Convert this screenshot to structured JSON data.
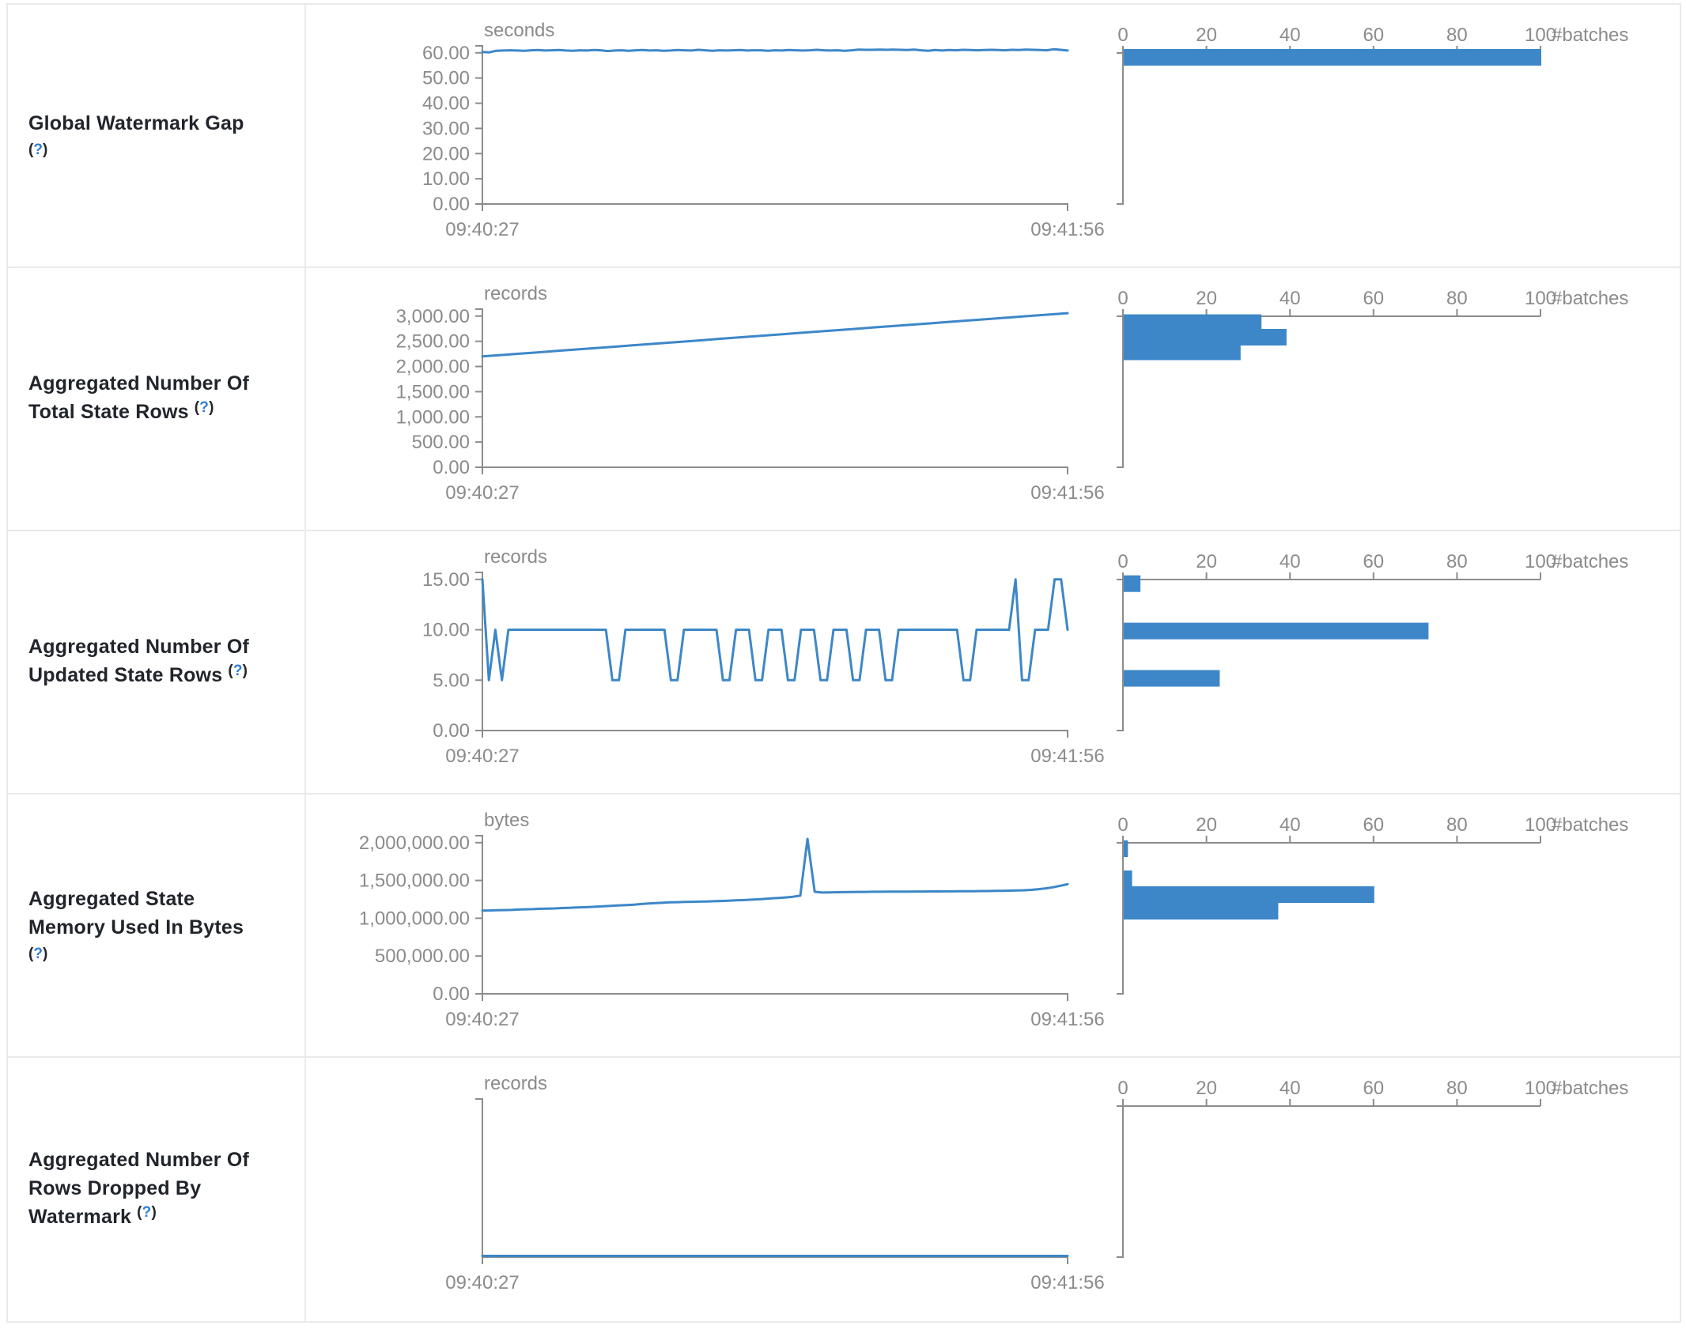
{
  "colors": {
    "blue": "#3d87c8",
    "axis": "#8c8c8c",
    "chart_text": "#8b8b8b",
    "title_text": "#21252b",
    "help_blue": "#2f7ed8",
    "border": "#e7eaec"
  },
  "axis": {
    "x_start": "09:40:27",
    "x_end": "09:41:56",
    "batch_ticks": [
      {
        "v": 0,
        "label": "0"
      },
      {
        "v": 20,
        "label": "20"
      },
      {
        "v": 40,
        "label": "40"
      },
      {
        "v": 60,
        "label": "60"
      },
      {
        "v": 80,
        "label": "80"
      },
      {
        "v": 100,
        "label": "100"
      }
    ],
    "batch_label": "#batches"
  },
  "chart_data": [
    {
      "id": "global-watermark-gap",
      "title_lines": [
        "Global Watermark Gap"
      ],
      "help": "(?)",
      "help_own_line": true,
      "unit": "seconds",
      "type": "line+histogram",
      "y_ticks": [
        {
          "v": 0,
          "label": "0.00"
        },
        {
          "v": 10,
          "label": "10.00"
        },
        {
          "v": 20,
          "label": "20.00"
        },
        {
          "v": 30,
          "label": "30.00"
        },
        {
          "v": 40,
          "label": "40.00"
        },
        {
          "v": 50,
          "label": "50.00"
        },
        {
          "v": 60,
          "label": "60.00"
        }
      ],
      "tick_max": 60,
      "timeline": [
        60.3,
        60.2,
        60.8,
        60.9,
        61.0,
        60.9,
        60.8,
        61.0,
        61.1,
        60.9,
        61.0,
        61.1,
        60.9,
        60.8,
        61.0,
        60.9,
        61.1,
        61.0,
        60.7,
        60.9,
        61.0,
        60.8,
        61.0,
        61.1,
        60.9,
        61.0,
        60.8,
        60.9,
        61.1,
        61.0,
        60.9,
        61.2,
        61.0,
        60.8,
        61.0,
        60.9,
        61.0,
        61.1,
        60.9,
        61.0,
        61.0,
        60.8,
        61.0,
        60.9,
        61.1,
        61.0,
        60.9,
        61.0,
        61.2,
        61.0,
        60.9,
        61.0,
        60.8,
        61.0,
        61.3,
        61.2,
        61.2,
        61.3,
        61.2,
        61.3,
        61.2,
        61.1,
        61.3,
        61.0,
        60.8,
        61.1,
        60.9,
        61.1,
        61.0,
        61.2,
        61.1,
        61.0,
        61.1,
        61.2,
        61.1,
        61.0,
        61.2,
        61.1,
        61.3,
        61.2,
        61.1,
        61.0,
        61.4,
        61.2,
        60.9
      ],
      "histogram": [
        {
          "range": [
            60.3,
            61.5
          ],
          "count": 100
        }
      ]
    },
    {
      "id": "aggregated-number-of-total-state-rows",
      "title_lines": [
        "Aggregated Number Of",
        "Total State Rows"
      ],
      "help": "(?)",
      "help_own_line": false,
      "unit": "records",
      "type": "line+histogram",
      "y_ticks": [
        {
          "v": 0,
          "label": "0.00"
        },
        {
          "v": 500,
          "label": "500.00"
        },
        {
          "v": 1000,
          "label": "1,000.00"
        },
        {
          "v": 1500,
          "label": "1,500.00"
        },
        {
          "v": 2000,
          "label": "2,000.00"
        },
        {
          "v": 2500,
          "label": "2,500.00"
        },
        {
          "v": 3000,
          "label": "3,000.00"
        }
      ],
      "tick_max": 3000,
      "timeline": [
        2200,
        2222,
        2244,
        2266,
        2288,
        2310,
        2332,
        2354,
        2376,
        2398,
        2420,
        2442,
        2464,
        2486,
        2508,
        2530,
        2552,
        2574,
        2596,
        2618,
        2640,
        2662,
        2684,
        2706,
        2728,
        2750,
        2772,
        2794,
        2816,
        2838,
        2860,
        2882,
        2904,
        2926,
        2948,
        2970,
        2992,
        3014,
        3036,
        3058
      ],
      "histogram": [
        {
          "range": [
            2745,
            3035
          ],
          "count": 33
        },
        {
          "range": [
            2455,
            2745
          ],
          "count": 39
        },
        {
          "range": [
            2165,
            2455
          ],
          "count": 28
        }
      ]
    },
    {
      "id": "aggregated-number-of-updated-state-rows",
      "title_lines": [
        "Aggregated Number Of",
        "Updated State Rows"
      ],
      "help": "(?)",
      "help_own_line": false,
      "unit": "records",
      "type": "line+histogram",
      "y_ticks": [
        {
          "v": 0,
          "label": "0.00"
        },
        {
          "v": 5,
          "label": "5.00"
        },
        {
          "v": 10,
          "label": "10.00"
        },
        {
          "v": 15,
          "label": "15.00"
        }
      ],
      "tick_max": 15,
      "timeline": [
        15,
        5,
        10,
        5,
        10,
        10,
        10,
        10,
        10,
        10,
        10,
        10,
        10,
        10,
        10,
        10,
        10,
        10,
        10,
        10,
        5,
        5,
        10,
        10,
        10,
        10,
        10,
        10,
        10,
        5,
        5,
        10,
        10,
        10,
        10,
        10,
        10,
        5,
        5,
        10,
        10,
        10,
        5,
        5,
        10,
        10,
        10,
        5,
        5,
        10,
        10,
        10,
        5,
        5,
        10,
        10,
        10,
        5,
        5,
        10,
        10,
        10,
        5,
        5,
        10,
        10,
        10,
        10,
        10,
        10,
        10,
        10,
        10,
        10,
        5,
        5,
        10,
        10,
        10,
        10,
        10,
        10,
        15,
        5,
        5,
        10,
        10,
        10,
        15,
        15,
        10
      ],
      "histogram": [
        {
          "range": [
            10.7,
            15.4
          ],
          "count": 4
        },
        {
          "range": [
            6.0,
            10.7
          ],
          "count": 73
        },
        {
          "range": [
            1.3,
            6.0
          ],
          "count": 23
        }
      ]
    },
    {
      "id": "aggregated-state-memory-used-in-bytes",
      "title_lines": [
        "Aggregated State",
        "Memory Used In Bytes"
      ],
      "help": "(?)",
      "help_own_line": true,
      "unit": "bytes",
      "type": "line+histogram",
      "y_ticks": [
        {
          "v": 0,
          "label": "0.00"
        },
        {
          "v": 500000,
          "label": "500,000.00"
        },
        {
          "v": 1000000,
          "label": "1,000,000.00"
        },
        {
          "v": 1500000,
          "label": "1,500,000.00"
        },
        {
          "v": 2000000,
          "label": "2,000,000.00"
        }
      ],
      "tick_max": 2000000,
      "timeline": [
        1100000,
        1103000,
        1106000,
        1108000,
        1110000,
        1115000,
        1118000,
        1120000,
        1125000,
        1128000,
        1130000,
        1135000,
        1138000,
        1142000,
        1145000,
        1150000,
        1155000,
        1160000,
        1165000,
        1170000,
        1175000,
        1180000,
        1188000,
        1195000,
        1200000,
        1205000,
        1210000,
        1212000,
        1215000,
        1218000,
        1220000,
        1222000,
        1225000,
        1228000,
        1232000,
        1236000,
        1240000,
        1245000,
        1250000,
        1255000,
        1262000,
        1268000,
        1275000,
        1285000,
        1298000,
        2050000,
        1350000,
        1340000,
        1342000,
        1344000,
        1345000,
        1346000,
        1348000,
        1348000,
        1350000,
        1350000,
        1351000,
        1352000,
        1352000,
        1353000,
        1354000,
        1354000,
        1355000,
        1355000,
        1356000,
        1356000,
        1357000,
        1358000,
        1358000,
        1360000,
        1360000,
        1362000,
        1363000,
        1365000,
        1368000,
        1370000,
        1375000,
        1385000,
        1395000,
        1410000,
        1430000,
        1450000
      ],
      "histogram": [
        {
          "range": [
            1840000,
            2029000
          ],
          "count": 1
        },
        {
          "range": [
            1440000,
            1632000
          ],
          "count": 2
        },
        {
          "range": [
            1230000,
            1423000
          ],
          "count": 60
        },
        {
          "range": [
            1010000,
            1203000
          ],
          "count": 37
        }
      ]
    },
    {
      "id": "aggregated-number-of-rows-dropped-by-watermark",
      "title_lines": [
        "Aggregated Number Of",
        "Rows Dropped By",
        "Watermark"
      ],
      "help": "(?)",
      "help_own_line": false,
      "unit": "records",
      "type": "line+histogram",
      "y_ticks": [],
      "tick_max": null,
      "timeline": [
        0,
        0
      ],
      "histogram": []
    }
  ]
}
